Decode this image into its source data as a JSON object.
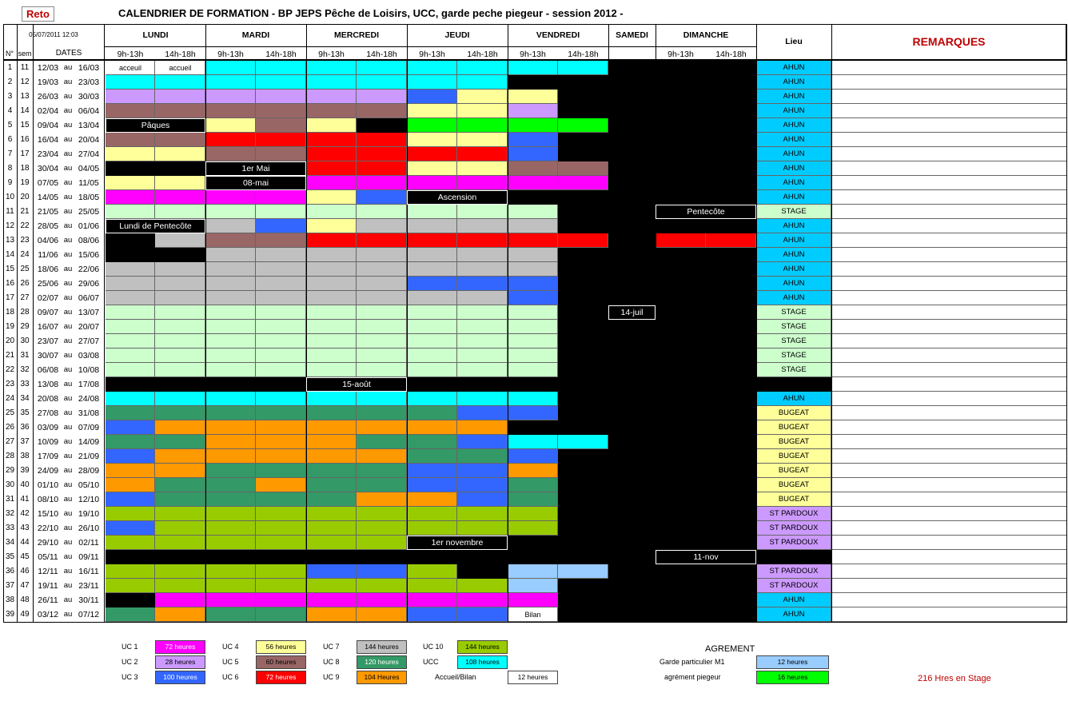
{
  "title": "CALENDRIER DE FORMATION - BP JEPS  Pêche de Loisirs, UCC, garde peche piegeur - session 2012 -",
  "reto_button": "Reto",
  "timestamp": "05/07/2011 12:03",
  "days": [
    "LUNDI",
    "MARDI",
    "MERCREDI",
    "JEUDI",
    "VENDREDI",
    "SAMEDI",
    "DIMANCHE"
  ],
  "slots": [
    "9h-13h",
    "14h-18h"
  ],
  "col_num": "N°",
  "col_sem": "sem",
  "col_dates": "DATES",
  "col_lieu": "Lieu",
  "col_remarques": "REMARQUES",
  "date_sep": "au",
  "colors": {
    "C": "#00ffff",
    "P": "#cc99ff",
    "M": "#996666",
    "Y": "#ffff99",
    "R": "#ff0000",
    "G": "#00ff00",
    "B": "#3366ff",
    "K": "#000000",
    "W": "#ffffff",
    "F": "#ff00ff",
    "S": "#ccffcc",
    "E": "#c0c0c0",
    "D": "#339966",
    "O": "#ff9900",
    "L": "#99cc00",
    "A": "#99ccff",
    "ahun": "#00ccff",
    "stage": "#ccffcc",
    "bugeat": "#ffff99",
    "stpardoux": "#cc99ff"
  },
  "rows": [
    {
      "n": "1",
      "sem": "11",
      "from": "12/03",
      "to": "16/03",
      "cells": "WWCCCCCCCC",
      "lieu": "AHUN",
      "lc": "ahun",
      "labels": [
        [
          "acceuil",
          0
        ],
        [
          "accueil",
          1
        ]
      ]
    },
    {
      "n": "2",
      "sem": "12",
      "from": "19/03",
      "to": "23/03",
      "cells": "CCCCCCCCKK",
      "lieu": "AHUN",
      "lc": "ahun"
    },
    {
      "n": "3",
      "sem": "13",
      "from": "26/03",
      "to": "30/03",
      "cells": "PPPPPPBYYK",
      "lieu": "AHUN",
      "lc": "ahun"
    },
    {
      "n": "4",
      "sem": "14",
      "from": "02/04",
      "to": "06/04",
      "cells": "MMMMMMYYPK",
      "lieu": "AHUN",
      "lc": "ahun"
    },
    {
      "n": "5",
      "sem": "15",
      "from": "09/04",
      "to": "13/04",
      "cells": "KKYMYKGGGG",
      "lieu": "AHUN",
      "lc": "ahun"
    },
    {
      "n": "6",
      "sem": "16",
      "from": "16/04",
      "to": "20/04",
      "cells": "MMRRRRYYBK",
      "lieu": "AHUN",
      "lc": "ahun"
    },
    {
      "n": "7",
      "sem": "17",
      "from": "23/04",
      "to": "27/04",
      "cells": "YYMMRRRRBK",
      "lieu": "AHUN",
      "lc": "ahun"
    },
    {
      "n": "8",
      "sem": "18",
      "from": "30/04",
      "to": "04/05",
      "cells": "KKKKRRYYMM",
      "lieu": "AHUN",
      "lc": "ahun"
    },
    {
      "n": "9",
      "sem": "19",
      "from": "07/05",
      "to": "11/05",
      "cells": "YYKKFFFFFF",
      "lieu": "AHUN",
      "lc": "ahun"
    },
    {
      "n": "10",
      "sem": "20",
      "from": "14/05",
      "to": "18/05",
      "cells": "FFFFYBKKKK",
      "lieu": "AHUN",
      "lc": "ahun"
    },
    {
      "n": "11",
      "sem": "21",
      "from": "21/05",
      "to": "25/05",
      "cells": "SSSSSSSSSK",
      "lieu": "STAGE",
      "lc": "stage"
    },
    {
      "n": "12",
      "sem": "22",
      "from": "28/05",
      "to": "01/06",
      "cells": "KKEBYEEEEK",
      "lieu": "AHUN",
      "lc": "ahun"
    },
    {
      "n": "13",
      "sem": "23",
      "from": "04/06",
      "to": "08/06",
      "cells": "KEMMRRRRRR",
      "lieu": "AHUN",
      "lc": "ahun",
      "weekend": "RR"
    },
    {
      "n": "14",
      "sem": "24",
      "from": "11/06",
      "to": "15/06",
      "cells": "KKEEEEEEEK",
      "lieu": "AHUN",
      "lc": "ahun"
    },
    {
      "n": "15",
      "sem": "25",
      "from": "18/06",
      "to": "22/06",
      "cells": "EEEEEEEEEK",
      "lieu": "AHUN",
      "lc": "ahun"
    },
    {
      "n": "16",
      "sem": "26",
      "from": "25/06",
      "to": "29/06",
      "cells": "EEEEEEBBBK",
      "lieu": "AHUN",
      "lc": "ahun"
    },
    {
      "n": "17",
      "sem": "27",
      "from": "02/07",
      "to": "06/07",
      "cells": "EEEEEEEEBK",
      "lieu": "AHUN",
      "lc": "ahun"
    },
    {
      "n": "18",
      "sem": "28",
      "from": "09/07",
      "to": "13/07",
      "cells": "SSSSSSSSSK",
      "lieu": "STAGE",
      "lc": "stage"
    },
    {
      "n": "19",
      "sem": "29",
      "from": "16/07",
      "to": "20/07",
      "cells": "SSSSSSSSSK",
      "lieu": "STAGE",
      "lc": "stage"
    },
    {
      "n": "20",
      "sem": "30",
      "from": "23/07",
      "to": "27/07",
      "cells": "SSSSSSSSSK",
      "lieu": "STAGE",
      "lc": "stage"
    },
    {
      "n": "21",
      "sem": "31",
      "from": "30/07",
      "to": "03/08",
      "cells": "SSSSSSSSSK",
      "lieu": "STAGE",
      "lc": "stage"
    },
    {
      "n": "22",
      "sem": "32",
      "from": "06/08",
      "to": "10/08",
      "cells": "SSSSSSSSSK",
      "lieu": "STAGE",
      "lc": "stage"
    },
    {
      "n": "23",
      "sem": "33",
      "from": "13/08",
      "to": "17/08",
      "cells": "KKKKKKKKKK",
      "lieu": "",
      "lc": "black"
    },
    {
      "n": "24",
      "sem": "34",
      "from": "20/08",
      "to": "24/08",
      "cells": "CCCCCCCCCK",
      "lieu": "AHUN",
      "lc": "ahun"
    },
    {
      "n": "25",
      "sem": "35",
      "from": "27/08",
      "to": "31/08",
      "cells": "DDDDDDDBBK",
      "lieu": "BUGEAT",
      "lc": "bugeat"
    },
    {
      "n": "26",
      "sem": "36",
      "from": "03/09",
      "to": "07/09",
      "cells": "BOOOOOOOKK",
      "lieu": "BUGEAT",
      "lc": "bugeat"
    },
    {
      "n": "27",
      "sem": "37",
      "from": "10/09",
      "to": "14/09",
      "cells": "DDOOODDBCC",
      "lieu": "BUGEAT",
      "lc": "bugeat"
    },
    {
      "n": "28",
      "sem": "38",
      "from": "17/09",
      "to": "21/09",
      "cells": "BOOOOODDBK",
      "lieu": "BUGEAT",
      "lc": "bugeat"
    },
    {
      "n": "29",
      "sem": "39",
      "from": "24/09",
      "to": "28/09",
      "cells": "OODDDDBBOK",
      "lieu": "BUGEAT",
      "lc": "bugeat"
    },
    {
      "n": "30",
      "sem": "40",
      "from": "01/10",
      "to": "05/10",
      "cells": "ODDODDBBDK",
      "lieu": "BUGEAT",
      "lc": "bugeat"
    },
    {
      "n": "31",
      "sem": "41",
      "from": "08/10",
      "to": "12/10",
      "cells": "BDDDDOOBDK",
      "lieu": "BUGEAT",
      "lc": "bugeat"
    },
    {
      "n": "32",
      "sem": "42",
      "from": "15/10",
      "to": "19/10",
      "cells": "LLLLLLLLLK",
      "lieu": "ST PARDOUX",
      "lc": "stpardoux"
    },
    {
      "n": "33",
      "sem": "43",
      "from": "22/10",
      "to": "26/10",
      "cells": "BLLLLLLLLK",
      "lieu": "ST PARDOUX",
      "lc": "stpardoux"
    },
    {
      "n": "34",
      "sem": "44",
      "from": "29/10",
      "to": "02/11",
      "cells": "LLLLLLKKKK",
      "lieu": "ST PARDOUX",
      "lc": "stpardoux"
    },
    {
      "n": "35",
      "sem": "45",
      "from": "05/11",
      "to": "09/11",
      "cells": "KKKKKKKKKK",
      "lieu": "",
      "lc": "black"
    },
    {
      "n": "36",
      "sem": "46",
      "from": "12/11",
      "to": "16/11",
      "cells": "LLLLBBLKAA",
      "lieu": "ST PARDOUX",
      "lc": "stpardoux"
    },
    {
      "n": "37",
      "sem": "47",
      "from": "19/11",
      "to": "23/11",
      "cells": "LLLLLLLLAK",
      "lieu": "ST PARDOUX",
      "lc": "stpardoux"
    },
    {
      "n": "38",
      "sem": "48",
      "from": "26/11",
      "to": "30/11",
      "cells": "KFFFFFFFFK",
      "lieu": "AHUN",
      "lc": "ahun"
    },
    {
      "n": "39",
      "sem": "49",
      "from": "03/12",
      "to": "07/12",
      "cells": "DODDOOBBWK",
      "lieu": "AHUN",
      "lc": "ahun",
      "labels": [
        [
          "Bilan",
          8
        ]
      ]
    }
  ],
  "overlays": [
    {
      "text": "Pâques",
      "row": 4,
      "start": 0,
      "span": 2
    },
    {
      "text": "1er Mai",
      "row": 7,
      "start": 2,
      "span": 2
    },
    {
      "text": "08-mai",
      "row": 8,
      "start": 2,
      "span": 2
    },
    {
      "text": "Ascension",
      "row": 9,
      "start": 6,
      "span": 2
    },
    {
      "text": "Pentecôte",
      "row": 10,
      "start": 11,
      "span": 2
    },
    {
      "text": "Lundi de Pentecôte",
      "row": 11,
      "start": 0,
      "span": 2
    },
    {
      "text": "14-juil",
      "row": 17,
      "start": 10,
      "span": 1
    },
    {
      "text": "15-août",
      "row": 22,
      "start": 4,
      "span": 2
    },
    {
      "text": "1er novembre",
      "row": 33,
      "start": 6,
      "span": 2
    },
    {
      "text": "11-nov",
      "row": 34,
      "start": 11,
      "span": 2
    }
  ],
  "legend": [
    {
      "name": "UC 1",
      "hours": "72 heures",
      "color": "#ff00ff"
    },
    {
      "name": "UC 2",
      "hours": "28 heures",
      "color": "#cc99ff"
    },
    {
      "name": "UC 3",
      "hours": "100 heures",
      "color": "#3366ff"
    },
    {
      "name": "UC 4",
      "hours": "56 heures",
      "color": "#ffff99"
    },
    {
      "name": "UC 5",
      "hours": "60 heures",
      "color": "#996666"
    },
    {
      "name": "UC 6",
      "hours": "72 heures",
      "color": "#ff0000"
    },
    {
      "name": "UC 7",
      "hours": "144 heures",
      "color": "#c0c0c0"
    },
    {
      "name": "UC 8",
      "hours": "120 heures",
      "color": "#339966"
    },
    {
      "name": "UC 9",
      "hours": "104 Heures",
      "color": "#ff9900"
    },
    {
      "name": "UC 10",
      "hours": "144 heures",
      "color": "#99cc00"
    },
    {
      "name": "UCC",
      "hours": "108 heures",
      "color": "#00ffff"
    },
    {
      "name": "Accueil/Bilan",
      "hours": "12 heures",
      "color": "#ffffff"
    }
  ],
  "agrement": {
    "title": "AGREMENT",
    "items": [
      {
        "name": "Garde particulier M1",
        "hours": "12 heures",
        "color": "#99ccff"
      },
      {
        "name": "agrément piegeur",
        "hours": "16 heures",
        "color": "#00ff00"
      }
    ]
  },
  "stage_hours": "216 Hres en Stage"
}
